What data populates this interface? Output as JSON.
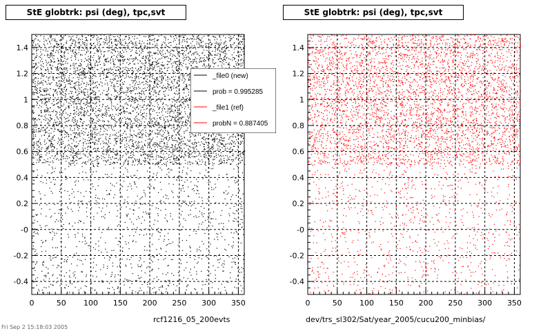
{
  "chart_data": [
    {
      "type": "scatter",
      "title": "StE globtrk: psi (deg), tpc,svt",
      "footer": "rcf1216_05_200evts",
      "color": "#000000",
      "xlim": [
        0,
        360
      ],
      "ylim": [
        -0.5,
        1.5
      ],
      "x_ticks": [
        "0",
        "50",
        "100",
        "150",
        "200",
        "250",
        "300",
        "350"
      ],
      "x_tick_values": [
        0,
        50,
        100,
        150,
        200,
        250,
        300,
        350
      ],
      "y_ticks": [
        "-0.4",
        "-0.2",
        "-0",
        "0.2",
        "0.4",
        "0.6",
        "0.8",
        "1",
        "1.2",
        "1.4"
      ],
      "y_tick_values": [
        -0.4,
        -0.2,
        0,
        0.2,
        0.4,
        0.6,
        0.8,
        1.0,
        1.2,
        1.4
      ],
      "grid": true,
      "density": {
        "y_break": 0.5,
        "dense_count": 5200,
        "sparse_count": 1100
      },
      "legend": {
        "placement": "top-right",
        "entries": [
          {
            "label": "_file0 (new)",
            "color": "#000000"
          },
          {
            "label": "prob = 0.995285",
            "color": "#000000"
          },
          {
            "label": "_file1 (ref)",
            "color": "#ff0000"
          },
          {
            "label": "probN = 0.887405",
            "color": "#ff0000"
          }
        ]
      }
    },
    {
      "type": "scatter",
      "title": "StE globtrk: psi (deg), tpc,svt",
      "footer": "dev/trs_sl302/Sat/year_2005/cucu200_minbias/",
      "color": "#ff0000",
      "xlim": [
        0,
        360
      ],
      "ylim": [
        -0.5,
        1.5
      ],
      "x_ticks": [
        "0",
        "50",
        "100",
        "150",
        "200",
        "250",
        "300",
        "350"
      ],
      "x_tick_values": [
        0,
        50,
        100,
        150,
        200,
        250,
        300,
        350
      ],
      "y_ticks": [
        "-0.4",
        "-0.2",
        "-0",
        "0.2",
        "0.4",
        "0.6",
        "0.8",
        "1",
        "1.2",
        "1.4"
      ],
      "y_tick_values": [
        -0.4,
        -0.2,
        0,
        0.2,
        0.4,
        0.6,
        0.8,
        1.0,
        1.2,
        1.4
      ],
      "grid": true,
      "density": {
        "y_break": 0.5,
        "dense_count": 4200,
        "sparse_count": 900
      }
    }
  ],
  "footer_stamp": "Fri Sep 2 15:18:03 2005"
}
